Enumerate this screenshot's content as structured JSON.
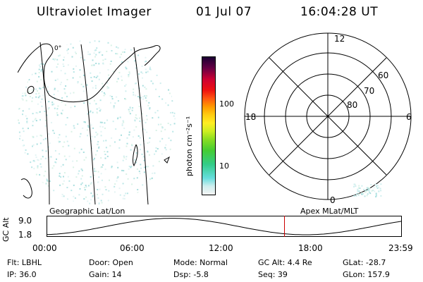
{
  "header": {
    "title": "Ultraviolet Imager",
    "date": "01 Jul 07",
    "time": "16:04:28 UT"
  },
  "geo": {
    "coast_label": "0°"
  },
  "colorbar": {
    "unit_label": "photon cm⁻²s⁻¹",
    "tick_100": "100",
    "tick_10": "10"
  },
  "polar": {
    "label_12": "12",
    "label_18": "18",
    "label_6": "6",
    "label_0": "0",
    "ring_60": "60",
    "ring_70": "70",
    "ring_80": "80"
  },
  "altplot": {
    "left_title": "Geographic Lat/Lon",
    "right_title": "Apex MLat/MLT",
    "axis_label": "GC Alt",
    "y_top": "9.0",
    "y_bottom": "1.8",
    "x_ticks": [
      "00:00",
      "06:00",
      "12:00",
      "18:00",
      "23:59"
    ],
    "marker_time_hours": 16.07,
    "marker_color": "#cc0000"
  },
  "info": {
    "flt": "Flt: LBHL",
    "ip": "IP: 36.0",
    "door": "Door: Open",
    "gain": "Gain: 14",
    "mode": "Mode: Normal",
    "dsp": "Dsp:   -5.8",
    "gcalt": "GC Alt: 4.4 Re",
    "seq": "Seq: 39",
    "glat": "GLat: -28.7",
    "glon": "GLon: 157.9"
  }
}
